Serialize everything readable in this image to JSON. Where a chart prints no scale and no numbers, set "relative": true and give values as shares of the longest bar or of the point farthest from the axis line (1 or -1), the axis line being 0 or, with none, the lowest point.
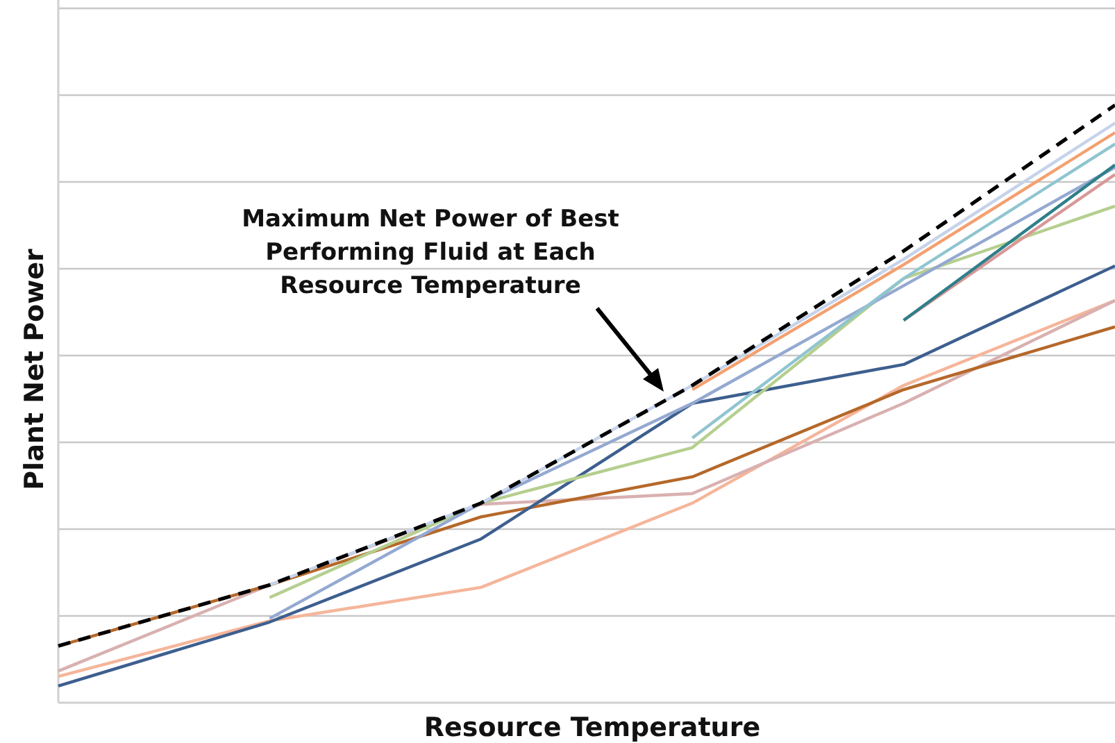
{
  "chart_data": {
    "type": "line",
    "relative": true,
    "xlabel": "Resource Temperature",
    "ylabel": "Plant Net Power",
    "grid": "y",
    "categories": [
      null,
      null,
      null,
      null,
      null,
      null
    ],
    "annotations": [
      "Maximum Net Power of Best Performing Fluid at Each Resource Temperature"
    ],
    "series": [
      {
        "color": "#f5b59a",
        "values": [
          0.044,
          0.137,
          0.193,
          0.334,
          0.531,
          0.673
        ]
      },
      {
        "color": "#d9b0b0",
        "values": [
          0.053,
          0.197,
          0.332,
          0.35,
          0.501,
          0.673
        ]
      },
      {
        "color": "#b5682a",
        "values": [
          0.095,
          0.197,
          0.311,
          0.378,
          0.524,
          0.629
        ]
      },
      {
        "color": "#3d5f8f",
        "values": [
          0.028,
          0.135,
          0.274,
          0.501,
          0.566,
          0.731
        ]
      },
      {
        "color": "#b5cf8f",
        "values": [
          null,
          0.176,
          0.334,
          0.427,
          0.71,
          0.831
        ]
      },
      {
        "color": "#94a9d1",
        "values": [
          null,
          0.141,
          0.334,
          0.501,
          0.698,
          0.896
        ]
      },
      {
        "color": "#8fc5d0",
        "values": [
          null,
          null,
          null,
          0.443,
          0.71,
          0.935
        ]
      },
      {
        "color": "#f4a070",
        "values": [
          null,
          null,
          null,
          0.524,
          0.733,
          0.954
        ]
      },
      {
        "color": "#c5d3ea",
        "values": [
          null,
          0.197,
          0.334,
          0.531,
          0.742,
          0.97
        ]
      },
      {
        "color": "#d89898",
        "values": [
          null,
          null,
          null,
          null,
          0.64,
          0.884
        ]
      },
      {
        "color": "#2f7f8a",
        "values": [
          null,
          null,
          null,
          null,
          0.64,
          0.9
        ]
      },
      {
        "color": "#000000",
        "line_style": "dashed",
        "values": [
          0.095,
          0.197,
          0.334,
          0.531,
          0.756,
          1.0
        ]
      }
    ]
  }
}
